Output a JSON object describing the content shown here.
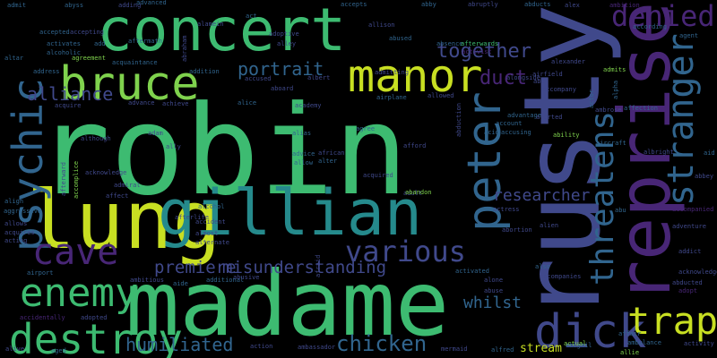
{
  "colors": {
    "background": "#000000",
    "yellow": "#c8df22",
    "lime": "#7fd24d",
    "green": "#3dbb71",
    "teal": "#22a585",
    "cyan": "#258a8c",
    "blue": "#31658e",
    "indigo": "#40498b",
    "purple": "#482676"
  },
  "words": [
    {
      "text": "robin",
      "color": "green"
    },
    {
      "text": "rusty",
      "color": "indigo"
    },
    {
      "text": "madame",
      "color": "green"
    },
    {
      "text": "concert",
      "color": "green"
    },
    {
      "text": "reprise",
      "color": "purple"
    },
    {
      "text": "lung",
      "color": "yellow"
    },
    {
      "text": "gillian",
      "color": "cyan"
    },
    {
      "text": "manor",
      "color": "yellow"
    },
    {
      "text": "bruce",
      "color": "lime"
    },
    {
      "text": "peter",
      "color": "blue"
    },
    {
      "text": "psychic",
      "color": "blue"
    },
    {
      "text": "cave",
      "color": "purple"
    },
    {
      "text": "enemy",
      "color": "green"
    },
    {
      "text": "destroy",
      "color": "green"
    },
    {
      "text": "dick",
      "color": "indigo"
    },
    {
      "text": "trap",
      "color": "yellow"
    },
    {
      "text": "stranger",
      "color": "blue"
    },
    {
      "text": "denied",
      "color": "purple"
    },
    {
      "text": "threatens",
      "color": "blue"
    },
    {
      "text": "various",
      "color": "indigo"
    },
    {
      "text": "humiliated",
      "color": "blue"
    },
    {
      "text": "chicken",
      "color": "blue"
    },
    {
      "text": "portrait",
      "color": "blue"
    },
    {
      "text": "alliance",
      "color": "indigo"
    },
    {
      "text": "together",
      "color": "indigo"
    },
    {
      "text": "premiere",
      "color": "indigo"
    },
    {
      "text": "misunderstanding",
      "color": "indigo"
    },
    {
      "text": "researcher",
      "color": "indigo"
    },
    {
      "text": "duct",
      "color": "purple"
    },
    {
      "text": "whilst",
      "color": "blue"
    },
    {
      "text": "stream",
      "color": "yellow"
    },
    {
      "text": "admit",
      "color": "blue"
    },
    {
      "text": "abyss",
      "color": "blue"
    },
    {
      "text": "adding",
      "color": "indigo"
    },
    {
      "text": "advanced",
      "color": "blue"
    },
    {
      "text": "accepts",
      "color": "blue"
    },
    {
      "text": "abby",
      "color": "blue"
    },
    {
      "text": "abruptly",
      "color": "indigo"
    },
    {
      "text": "abducts",
      "color": "blue"
    },
    {
      "text": "alex",
      "color": "indigo"
    },
    {
      "text": "ambition",
      "color": "purple"
    },
    {
      "text": "alamein",
      "color": "indigo"
    },
    {
      "text": "abraham",
      "color": "indigo"
    },
    {
      "text": "act",
      "color": "blue"
    },
    {
      "text": "allison",
      "color": "indigo"
    },
    {
      "text": "absence",
      "color": "blue"
    },
    {
      "text": "afterwards",
      "color": "green"
    },
    {
      "text": "activist",
      "color": "purple"
    },
    {
      "text": "according",
      "color": "blue"
    },
    {
      "text": "agent",
      "color": "blue"
    },
    {
      "text": "accepted",
      "color": "blue"
    },
    {
      "text": "accepting",
      "color": "indigo"
    },
    {
      "text": "adoptive",
      "color": "indigo"
    },
    {
      "text": "alley",
      "color": "indigo"
    },
    {
      "text": "abused",
      "color": "blue"
    },
    {
      "text": "activates",
      "color": "blue"
    },
    {
      "text": "alcoholic",
      "color": "blue"
    },
    {
      "text": "aftermath",
      "color": "blue"
    },
    {
      "text": "add",
      "color": "blue"
    },
    {
      "text": "altar",
      "color": "blue"
    },
    {
      "text": "agreement",
      "color": "lime"
    },
    {
      "text": "acquaintance",
      "color": "blue"
    },
    {
      "text": "address",
      "color": "blue"
    },
    {
      "text": "addition",
      "color": "blue"
    },
    {
      "text": "accused",
      "color": "indigo"
    },
    {
      "text": "albert",
      "color": "indigo"
    },
    {
      "text": "admitting",
      "color": "indigo"
    },
    {
      "text": "airplane",
      "color": "blue"
    },
    {
      "text": "allowed",
      "color": "indigo"
    },
    {
      "text": "alongside",
      "color": "indigo"
    },
    {
      "text": "alexander",
      "color": "indigo"
    },
    {
      "text": "airfield",
      "color": "indigo"
    },
    {
      "text": "abe",
      "color": "indigo"
    },
    {
      "text": "accompany",
      "color": "indigo"
    },
    {
      "text": "admits",
      "color": "lime"
    },
    {
      "text": "alpha",
      "color": "blue"
    },
    {
      "text": "actor",
      "color": "blue"
    },
    {
      "text": "aboard",
      "color": "indigo"
    },
    {
      "text": "academy",
      "color": "indigo"
    },
    {
      "text": "achieve",
      "color": "indigo"
    },
    {
      "text": "advance",
      "color": "indigo"
    },
    {
      "text": "acquire",
      "color": "indigo"
    },
    {
      "text": "abduction",
      "color": "indigo"
    },
    {
      "text": "ambrose",
      "color": "indigo"
    },
    {
      "text": "affection",
      "color": "blue"
    },
    {
      "text": "advantage",
      "color": "blue"
    },
    {
      "text": "account",
      "color": "blue"
    },
    {
      "text": "alerted",
      "color": "indigo"
    },
    {
      "text": "alice",
      "color": "blue"
    },
    {
      "text": "acid",
      "color": "blue"
    },
    {
      "text": "accusing",
      "color": "blue"
    },
    {
      "text": "agree",
      "color": "blue"
    },
    {
      "text": "alias",
      "color": "blue"
    },
    {
      "text": "advice",
      "color": "blue"
    },
    {
      "text": "allow",
      "color": "blue"
    },
    {
      "text": "adam",
      "color": "indigo"
    },
    {
      "text": "ally",
      "color": "indigo"
    },
    {
      "text": "although",
      "color": "indigo"
    },
    {
      "text": "african",
      "color": "indigo"
    },
    {
      "text": "alter",
      "color": "blue"
    },
    {
      "text": "afford",
      "color": "indigo"
    },
    {
      "text": "ability",
      "color": "lime"
    },
    {
      "text": "aircraft",
      "color": "blue"
    },
    {
      "text": "albright",
      "color": "indigo"
    },
    {
      "text": "aid",
      "color": "blue"
    },
    {
      "text": "abbey",
      "color": "indigo"
    },
    {
      "text": "afterward",
      "color": "indigo"
    },
    {
      "text": "accomplice",
      "color": "lime"
    },
    {
      "text": "affect",
      "color": "indigo"
    },
    {
      "text": "admiral",
      "color": "indigo"
    },
    {
      "text": "acquired",
      "color": "indigo"
    },
    {
      "text": "adult",
      "color": "indigo"
    },
    {
      "text": "abandon",
      "color": "lime"
    },
    {
      "text": "abu",
      "color": "blue"
    },
    {
      "text": "acknowledge",
      "color": "indigo"
    },
    {
      "text": "align",
      "color": "blue"
    },
    {
      "text": "aggressive",
      "color": "blue"
    },
    {
      "text": "afterlife",
      "color": "indigo"
    },
    {
      "text": "alcohol",
      "color": "blue"
    },
    {
      "text": "actress",
      "color": "indigo"
    },
    {
      "text": "accompanied",
      "color": "purple"
    },
    {
      "text": "adventure",
      "color": "indigo"
    },
    {
      "text": "allows",
      "color": "indigo"
    },
    {
      "text": "acquires",
      "color": "indigo"
    },
    {
      "text": "acting",
      "color": "indigo"
    },
    {
      "text": "accident",
      "color": "indigo"
    },
    {
      "text": "almost",
      "color": "indigo"
    },
    {
      "text": "alternate",
      "color": "indigo"
    },
    {
      "text": "afraid",
      "color": "indigo"
    },
    {
      "text": "alien",
      "color": "indigo"
    },
    {
      "text": "abortion",
      "color": "indigo"
    },
    {
      "text": "addict",
      "color": "indigo"
    },
    {
      "text": "airport",
      "color": "blue"
    },
    {
      "text": "ambitious",
      "color": "indigo"
    },
    {
      "text": "aide",
      "color": "blue"
    },
    {
      "text": "additional",
      "color": "blue"
    },
    {
      "text": "abusive",
      "color": "indigo"
    },
    {
      "text": "activated",
      "color": "blue"
    },
    {
      "text": "alone",
      "color": "indigo"
    },
    {
      "text": "abuse",
      "color": "indigo"
    },
    {
      "text": "also",
      "color": "blue"
    },
    {
      "text": "accompanies",
      "color": "indigo"
    },
    {
      "text": "acknowledges",
      "color": "indigo"
    },
    {
      "text": "abducted",
      "color": "indigo"
    },
    {
      "text": "adopt",
      "color": "purple"
    },
    {
      "text": "accidentally",
      "color": "purple"
    },
    {
      "text": "adopted",
      "color": "indigo"
    },
    {
      "text": "alfred",
      "color": "blue"
    },
    {
      "text": "abigail",
      "color": "blue"
    },
    {
      "text": "actual",
      "color": "lime"
    },
    {
      "text": "affair",
      "color": "blue"
    },
    {
      "text": "ambulance",
      "color": "blue"
    },
    {
      "text": "allie",
      "color": "lime"
    },
    {
      "text": "activity",
      "color": "indigo"
    },
    {
      "text": "alive",
      "color": "indigo"
    },
    {
      "text": "aged",
      "color": "blue"
    },
    {
      "text": "action",
      "color": "indigo"
    },
    {
      "text": "ambassador",
      "color": "indigo"
    },
    {
      "text": "mermaid",
      "color": "indigo"
    }
  ]
}
